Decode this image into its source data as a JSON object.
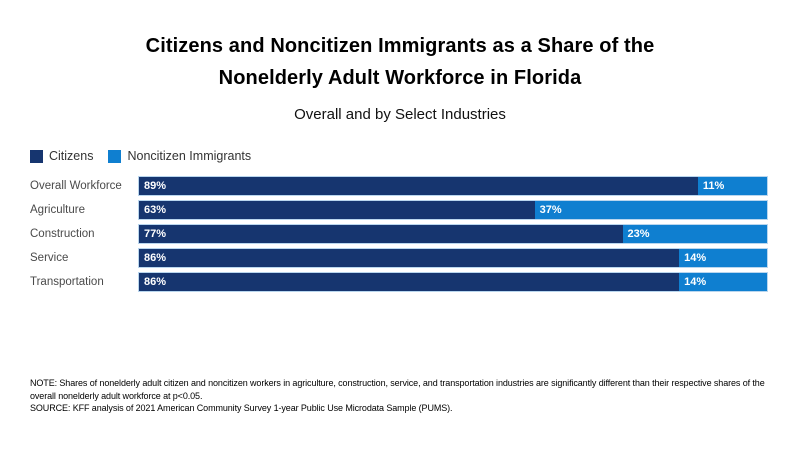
{
  "header": {
    "title_line1": "Citizens and Noncitizen Immigrants as a Share of the",
    "title_line2": "Nonelderly Adult Workforce in Florida",
    "subtitle": "Overall and by Select Industries"
  },
  "legend": [
    {
      "label": "Citizens",
      "color": "#16356F"
    },
    {
      "label": "Noncitizen Immigrants",
      "color": "#0F7FD0"
    }
  ],
  "chart_data": {
    "type": "bar",
    "orientation": "horizontal",
    "stacked": true,
    "grid": false,
    "legend_position": "top-left",
    "categories": [
      "Overall Workforce",
      "Agriculture",
      "Construction",
      "Service",
      "Transportation"
    ],
    "series": [
      {
        "name": "Citizens",
        "color": "#16356F",
        "values": [
          89,
          63,
          77,
          86,
          86
        ]
      },
      {
        "name": "Noncitizen Immigrants",
        "color": "#0F7FD0",
        "values": [
          11,
          37,
          23,
          14,
          14
        ]
      }
    ],
    "value_suffix": "%",
    "xlim": [
      0,
      100
    ],
    "title": "Citizens and Noncitizen Immigrants as a Share of the Nonelderly Adult Workforce in Florida",
    "subtitle": "Overall and by Select Industries",
    "xlabel": "",
    "ylabel": ""
  },
  "notes": {
    "note": "NOTE: Shares of nonelderly adult citizen and noncitizen workers in agriculture, construction, service, and transportation industries are significantly different than their respective shares of the overall nonelderly adult workforce at p<0.05.",
    "source": "SOURCE: KFF analysis of 2021 American Community Survey 1-year Public Use Microdata Sample (PUMS)."
  }
}
